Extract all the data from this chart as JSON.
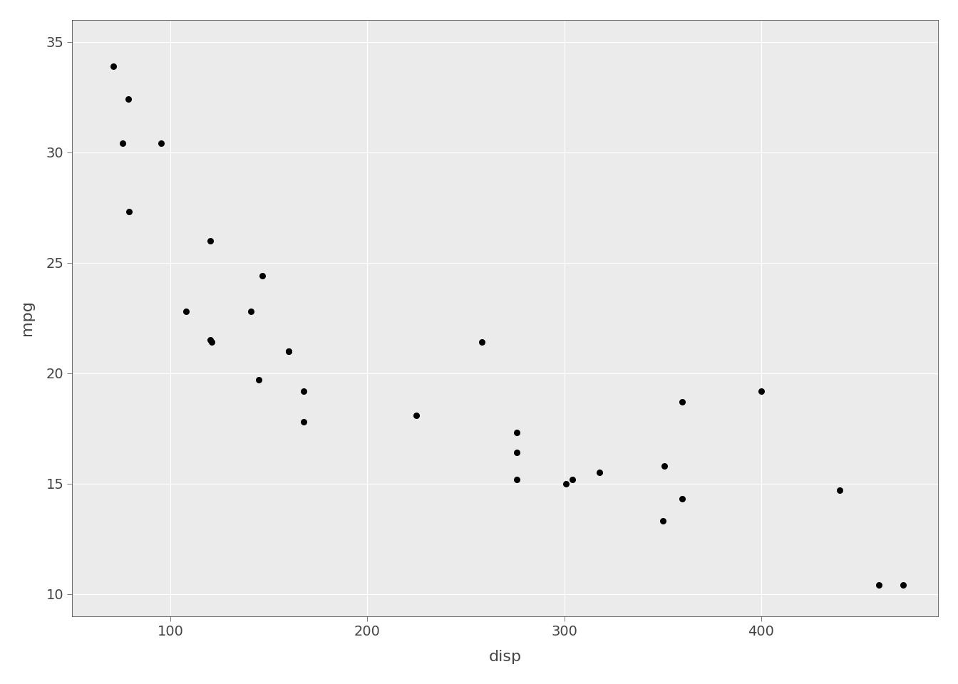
{
  "disp": [
    160.0,
    160.0,
    108.0,
    258.0,
    360.0,
    225.0,
    360.0,
    146.7,
    140.8,
    167.6,
    167.6,
    275.8,
    275.8,
    275.8,
    472.0,
    460.0,
    440.0,
    78.7,
    75.7,
    71.1,
    120.1,
    318.0,
    304.0,
    350.0,
    400.0,
    79.0,
    120.3,
    95.1,
    351.0,
    145.0,
    301.0,
    121.0
  ],
  "mpg": [
    21.0,
    21.0,
    22.8,
    21.4,
    18.7,
    18.1,
    14.3,
    24.4,
    22.8,
    19.2,
    17.8,
    16.4,
    17.3,
    15.2,
    10.4,
    10.4,
    14.7,
    32.4,
    30.4,
    33.9,
    21.5,
    15.5,
    15.2,
    13.3,
    19.2,
    27.3,
    26.0,
    30.4,
    15.8,
    19.7,
    15.0,
    21.4
  ],
  "xlabel": "disp",
  "ylabel": "mpg",
  "xlim": [
    50,
    490
  ],
  "ylim": [
    9,
    36
  ],
  "xticks": [
    100,
    200,
    300,
    400
  ],
  "yticks": [
    10,
    15,
    20,
    25,
    30,
    35
  ],
  "point_color": "#000000",
  "point_size": 30,
  "background_color": "#ffffff",
  "panel_background": "#ebebeb",
  "grid_color": "#ffffff",
  "axis_label_fontsize": 16,
  "tick_fontsize": 14,
  "tick_color": "#444444",
  "spine_color": "#333333"
}
